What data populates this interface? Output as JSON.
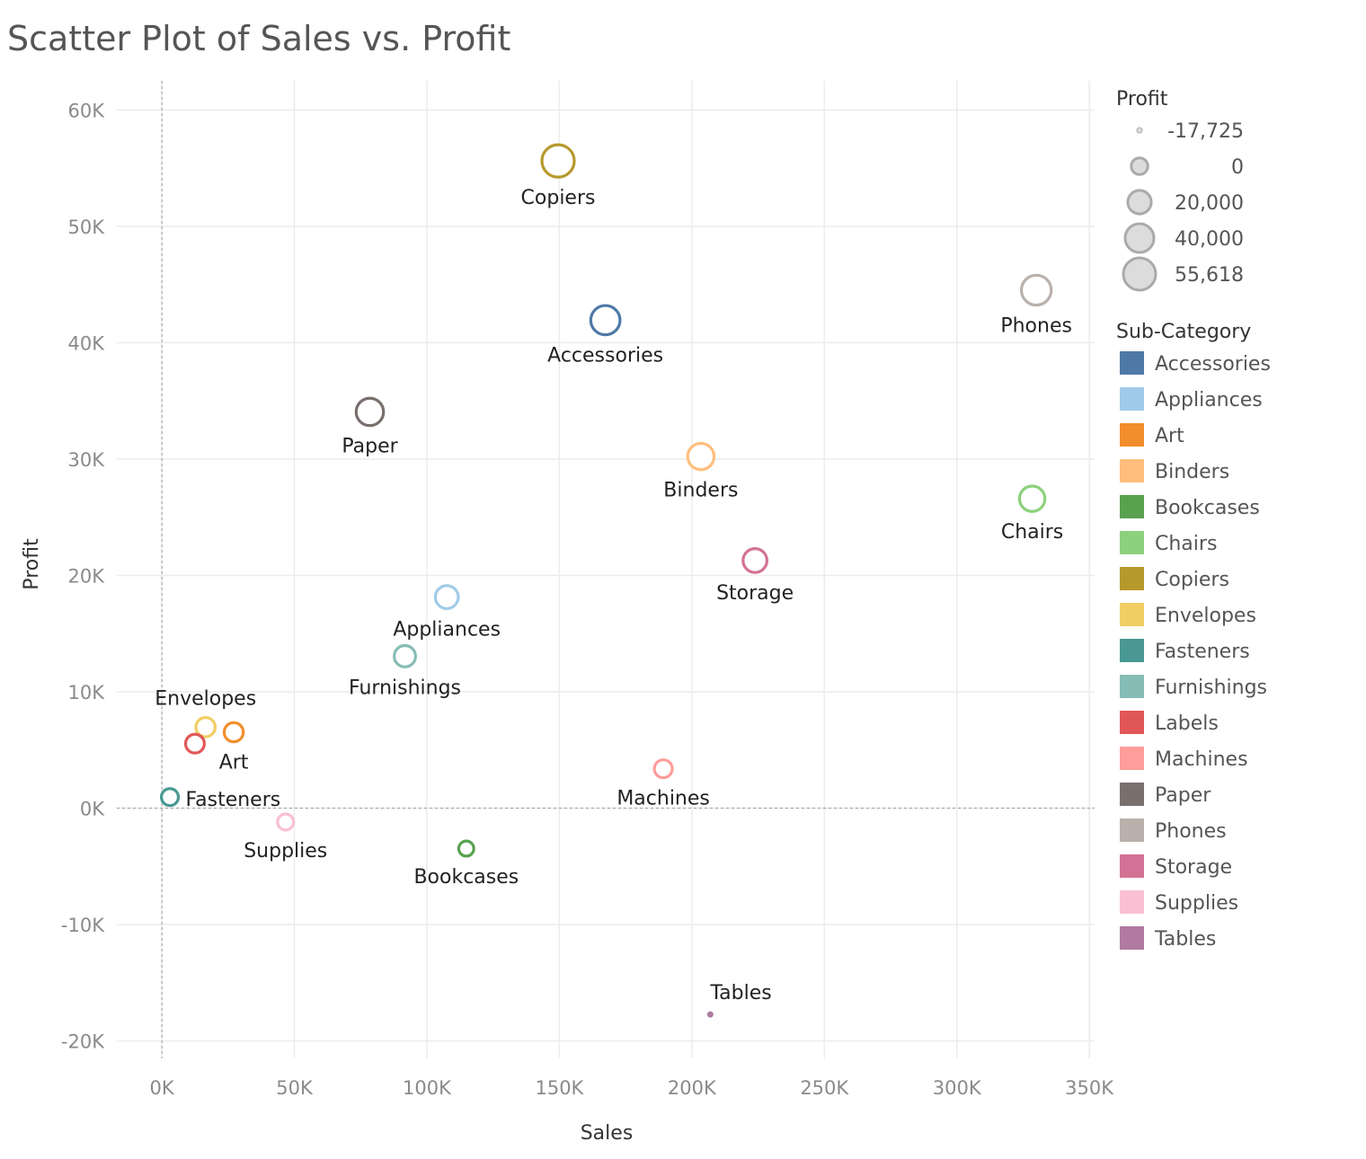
{
  "chart_data": {
    "type": "scatter",
    "title": "Scatter Plot of Sales vs. Profit",
    "xlabel": "Sales",
    "ylabel": "Profit",
    "xlim": [
      -17000,
      352000
    ],
    "ylim": [
      -21500,
      62500
    ],
    "x_ticks": [
      0,
      50000,
      100000,
      150000,
      200000,
      250000,
      300000,
      350000
    ],
    "x_tick_labels": [
      "0K",
      "50K",
      "100K",
      "150K",
      "200K",
      "250K",
      "300K",
      "350K"
    ],
    "y_ticks": [
      -20000,
      -10000,
      0,
      10000,
      20000,
      30000,
      40000,
      50000,
      60000
    ],
    "y_tick_labels": [
      "-20K",
      "-10K",
      "0K",
      "10K",
      "20K",
      "30K",
      "40K",
      "50K",
      "60K"
    ],
    "grid": true,
    "reference_lines": {
      "x": 0,
      "y": 0,
      "style": "dashed"
    },
    "size_encoding": "Profit",
    "size_legend": {
      "title": "Profit",
      "entries": [
        {
          "label": "-17,725",
          "value": -17725
        },
        {
          "label": "0",
          "value": 0
        },
        {
          "label": "20,000",
          "value": 20000
        },
        {
          "label": "40,000",
          "value": 40000
        },
        {
          "label": "55,618",
          "value": 55618
        }
      ]
    },
    "color_legend": {
      "title": "Sub-Category",
      "placement": "right"
    },
    "points": [
      {
        "name": "Accessories",
        "sales": 167380,
        "profit": 41937,
        "color": "#4e79a7",
        "label_pos": "below"
      },
      {
        "name": "Appliances",
        "sales": 107532,
        "profit": 18138,
        "color": "#a0cbe8",
        "label_pos": "below"
      },
      {
        "name": "Art",
        "sales": 27119,
        "profit": 6528,
        "color": "#f28e2b",
        "label_pos": "below"
      },
      {
        "name": "Binders",
        "sales": 203413,
        "profit": 30222,
        "color": "#ffbe7d",
        "label_pos": "below"
      },
      {
        "name": "Bookcases",
        "sales": 114880,
        "profit": -3473,
        "color": "#59a14f",
        "label_pos": "below"
      },
      {
        "name": "Chairs",
        "sales": 328449,
        "profit": 26590,
        "color": "#8cd17d",
        "label_pos": "below"
      },
      {
        "name": "Copiers",
        "sales": 149528,
        "profit": 55618,
        "color": "#b6992d",
        "label_pos": "below"
      },
      {
        "name": "Envelopes",
        "sales": 16476,
        "profit": 6964,
        "color": "#f1ce63",
        "label_pos": "above"
      },
      {
        "name": "Fasteners",
        "sales": 3024,
        "profit": 950,
        "color": "#499894",
        "label_pos": "right"
      },
      {
        "name": "Furnishings",
        "sales": 91705,
        "profit": 13059,
        "color": "#86bcb6",
        "label_pos": "below"
      },
      {
        "name": "Labels",
        "sales": 12486,
        "profit": 5546,
        "color": "#e15759",
        "label_pos": "none"
      },
      {
        "name": "Machines",
        "sales": 189239,
        "profit": 3385,
        "color": "#ff9d9a",
        "label_pos": "below"
      },
      {
        "name": "Paper",
        "sales": 78479,
        "profit": 34054,
        "color": "#79706e",
        "label_pos": "below"
      },
      {
        "name": "Phones",
        "sales": 330007,
        "profit": 44516,
        "color": "#bab0ac",
        "label_pos": "below"
      },
      {
        "name": "Storage",
        "sales": 223844,
        "profit": 21279,
        "color": "#d37295",
        "label_pos": "below"
      },
      {
        "name": "Supplies",
        "sales": 46674,
        "profit": -1189,
        "color": "#fabfd2",
        "label_pos": "below"
      },
      {
        "name": "Tables",
        "sales": 206966,
        "profit": -17725,
        "color": "#b07aa1",
        "label_pos": "above"
      }
    ]
  }
}
